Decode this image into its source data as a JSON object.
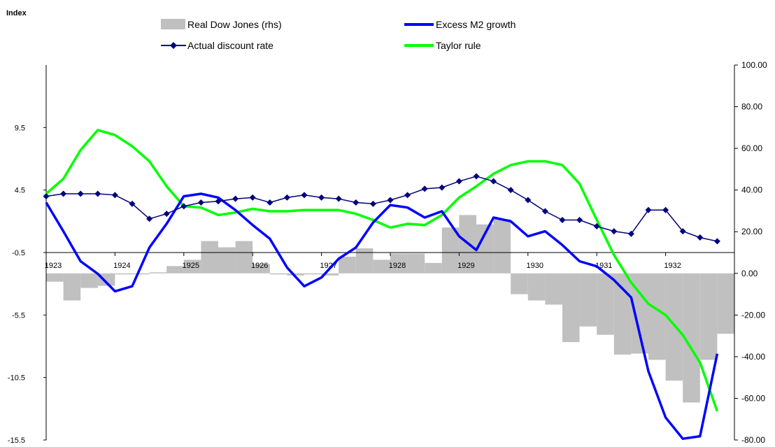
{
  "chart_data": {
    "type": "bar+line",
    "ylabel_left": "Index",
    "left_axis": {
      "min": -15.5,
      "max": 14.5,
      "ticks": [
        -15.5,
        -10.5,
        -5.5,
        -0.5,
        4.5,
        9.5
      ]
    },
    "right_axis": {
      "min": -80,
      "max": 100,
      "ticks": [
        "-80.00",
        "-60.00",
        "-40.00",
        "-20.00",
        "0.00",
        "20.00",
        "40.00",
        "60.00",
        "80.00",
        "100.00"
      ]
    },
    "x_range": [
      1923,
      1933
    ],
    "year_labels": [
      "1923",
      "1924",
      "1925",
      "1926",
      "1927",
      "1928",
      "1929",
      "1930",
      "1931",
      "1932"
    ],
    "legend": {
      "dow": "Real Dow Jones (rhs)",
      "m2": "Excess M2 growth",
      "discount": "Actual discount rate",
      "taylor": "Taylor rule"
    },
    "colors": {
      "dow": "#c0c0c0",
      "m2": "#0000ff",
      "discount": "#000080",
      "taylor": "#00ff00"
    },
    "dow_bars_rhs": {
      "x": [
        1922.875,
        1923.125,
        1923.375,
        1923.625,
        1923.875,
        1924.125,
        1924.375,
        1924.625,
        1924.875,
        1925.125,
        1925.375,
        1925.625,
        1925.875,
        1926.125,
        1926.375,
        1926.625,
        1926.875,
        1927.125,
        1927.375,
        1927.625,
        1927.875,
        1928.125,
        1928.375,
        1928.625,
        1928.875,
        1929.125,
        1929.375,
        1929.625,
        1929.875,
        1930.125,
        1930.375,
        1930.625,
        1930.875,
        1931.125,
        1931.375,
        1931.625,
        1931.875,
        1932.125,
        1932.375,
        1932.625,
        1932.875
      ],
      "values": [
        -0.5,
        -4,
        -13,
        -7,
        -6,
        -0.5,
        -0.5,
        0.5,
        3.5,
        6.5,
        15.5,
        12.5,
        15.5,
        4.5,
        -0.5,
        -1,
        -0.5,
        -1,
        8,
        12,
        6.5,
        9.5,
        9.5,
        5,
        22,
        28,
        23.5,
        26,
        -10,
        -13,
        -15,
        -33,
        -25.5,
        -29.5,
        -39,
        -38.5,
        -41.5,
        -51.5,
        -62,
        -41.5,
        -29
      ]
    },
    "actual_discount_rate": {
      "x": [
        1923.0,
        1923.25,
        1923.5,
        1923.75,
        1924.0,
        1924.25,
        1924.5,
        1924.75,
        1925.0,
        1925.25,
        1925.5,
        1925.75,
        1926.0,
        1926.25,
        1926.5,
        1926.75,
        1927.0,
        1927.25,
        1927.5,
        1927.75,
        1928.0,
        1928.25,
        1928.5,
        1928.75,
        1929.0,
        1929.25,
        1929.5,
        1929.75,
        1930.0,
        1930.25,
        1930.5,
        1930.75,
        1931.0,
        1931.25,
        1931.5,
        1931.75,
        1932.0,
        1932.25,
        1932.5,
        1932.75
      ],
      "values": [
        4.0,
        4.2,
        4.2,
        4.2,
        4.1,
        3.4,
        2.2,
        2.6,
        3.2,
        3.5,
        3.6,
        3.8,
        3.9,
        3.5,
        3.9,
        4.1,
        3.9,
        3.8,
        3.5,
        3.4,
        3.7,
        4.1,
        4.6,
        4.7,
        5.2,
        5.6,
        5.2,
        4.5,
        3.7,
        2.8,
        2.1,
        2.1,
        1.6,
        1.2,
        1.0,
        2.9,
        2.9,
        1.2,
        0.7,
        0.4
      ]
    },
    "excess_m2_growth": {
      "x": [
        1923.0,
        1923.25,
        1923.5,
        1923.75,
        1924.0,
        1924.25,
        1924.5,
        1924.75,
        1925.0,
        1925.25,
        1925.5,
        1925.75,
        1926.0,
        1926.25,
        1926.5,
        1926.75,
        1927.0,
        1927.25,
        1927.5,
        1927.75,
        1928.0,
        1928.25,
        1928.5,
        1928.75,
        1929.0,
        1929.25,
        1929.5,
        1929.75,
        1930.0,
        1930.25,
        1930.5,
        1930.75,
        1931.0,
        1931.25,
        1931.5,
        1931.75,
        1932.0,
        1932.25,
        1932.5,
        1932.75
      ],
      "values": [
        3.5,
        1.2,
        -1.2,
        -2.2,
        -3.6,
        -3.2,
        -0.1,
        1.8,
        4.0,
        4.2,
        3.9,
        2.9,
        1.7,
        0.6,
        -1.7,
        -3.2,
        -2.5,
        -1.0,
        -0.1,
        1.9,
        3.3,
        3.1,
        2.3,
        2.8,
        0.8,
        -0.3,
        2.3,
        2.0,
        0.8,
        1.2,
        0.1,
        -1.2,
        -1.6,
        -2.7,
        -4.1,
        -10.0,
        -13.7,
        -15.4,
        -15.2,
        -8.6
      ]
    },
    "taylor_rule": {
      "x": [
        1923.0,
        1923.25,
        1923.5,
        1923.75,
        1924.0,
        1924.25,
        1924.5,
        1924.75,
        1925.0,
        1925.25,
        1925.5,
        1925.75,
        1926.0,
        1926.25,
        1926.5,
        1926.75,
        1927.0,
        1927.25,
        1927.5,
        1927.75,
        1928.0,
        1928.25,
        1928.5,
        1928.75,
        1929.0,
        1929.25,
        1929.5,
        1929.75,
        1930.0,
        1930.25,
        1930.5,
        1930.75,
        1931.0,
        1931.25,
        1931.5,
        1931.75,
        1932.0,
        1932.25,
        1932.5,
        1932.75
      ],
      "values": [
        4.2,
        5.4,
        7.7,
        9.3,
        8.9,
        8.0,
        6.8,
        4.8,
        3.2,
        3.1,
        2.5,
        2.7,
        3.0,
        2.8,
        2.8,
        2.9,
        2.9,
        2.9,
        2.6,
        2.1,
        1.5,
        1.8,
        1.7,
        2.5,
        3.9,
        4.8,
        5.8,
        6.5,
        6.8,
        6.8,
        6.5,
        5.0,
        2.1,
        -0.7,
        -2.9,
        -4.6,
        -5.5,
        -7.1,
        -9.3,
        -13.2
      ]
    }
  }
}
